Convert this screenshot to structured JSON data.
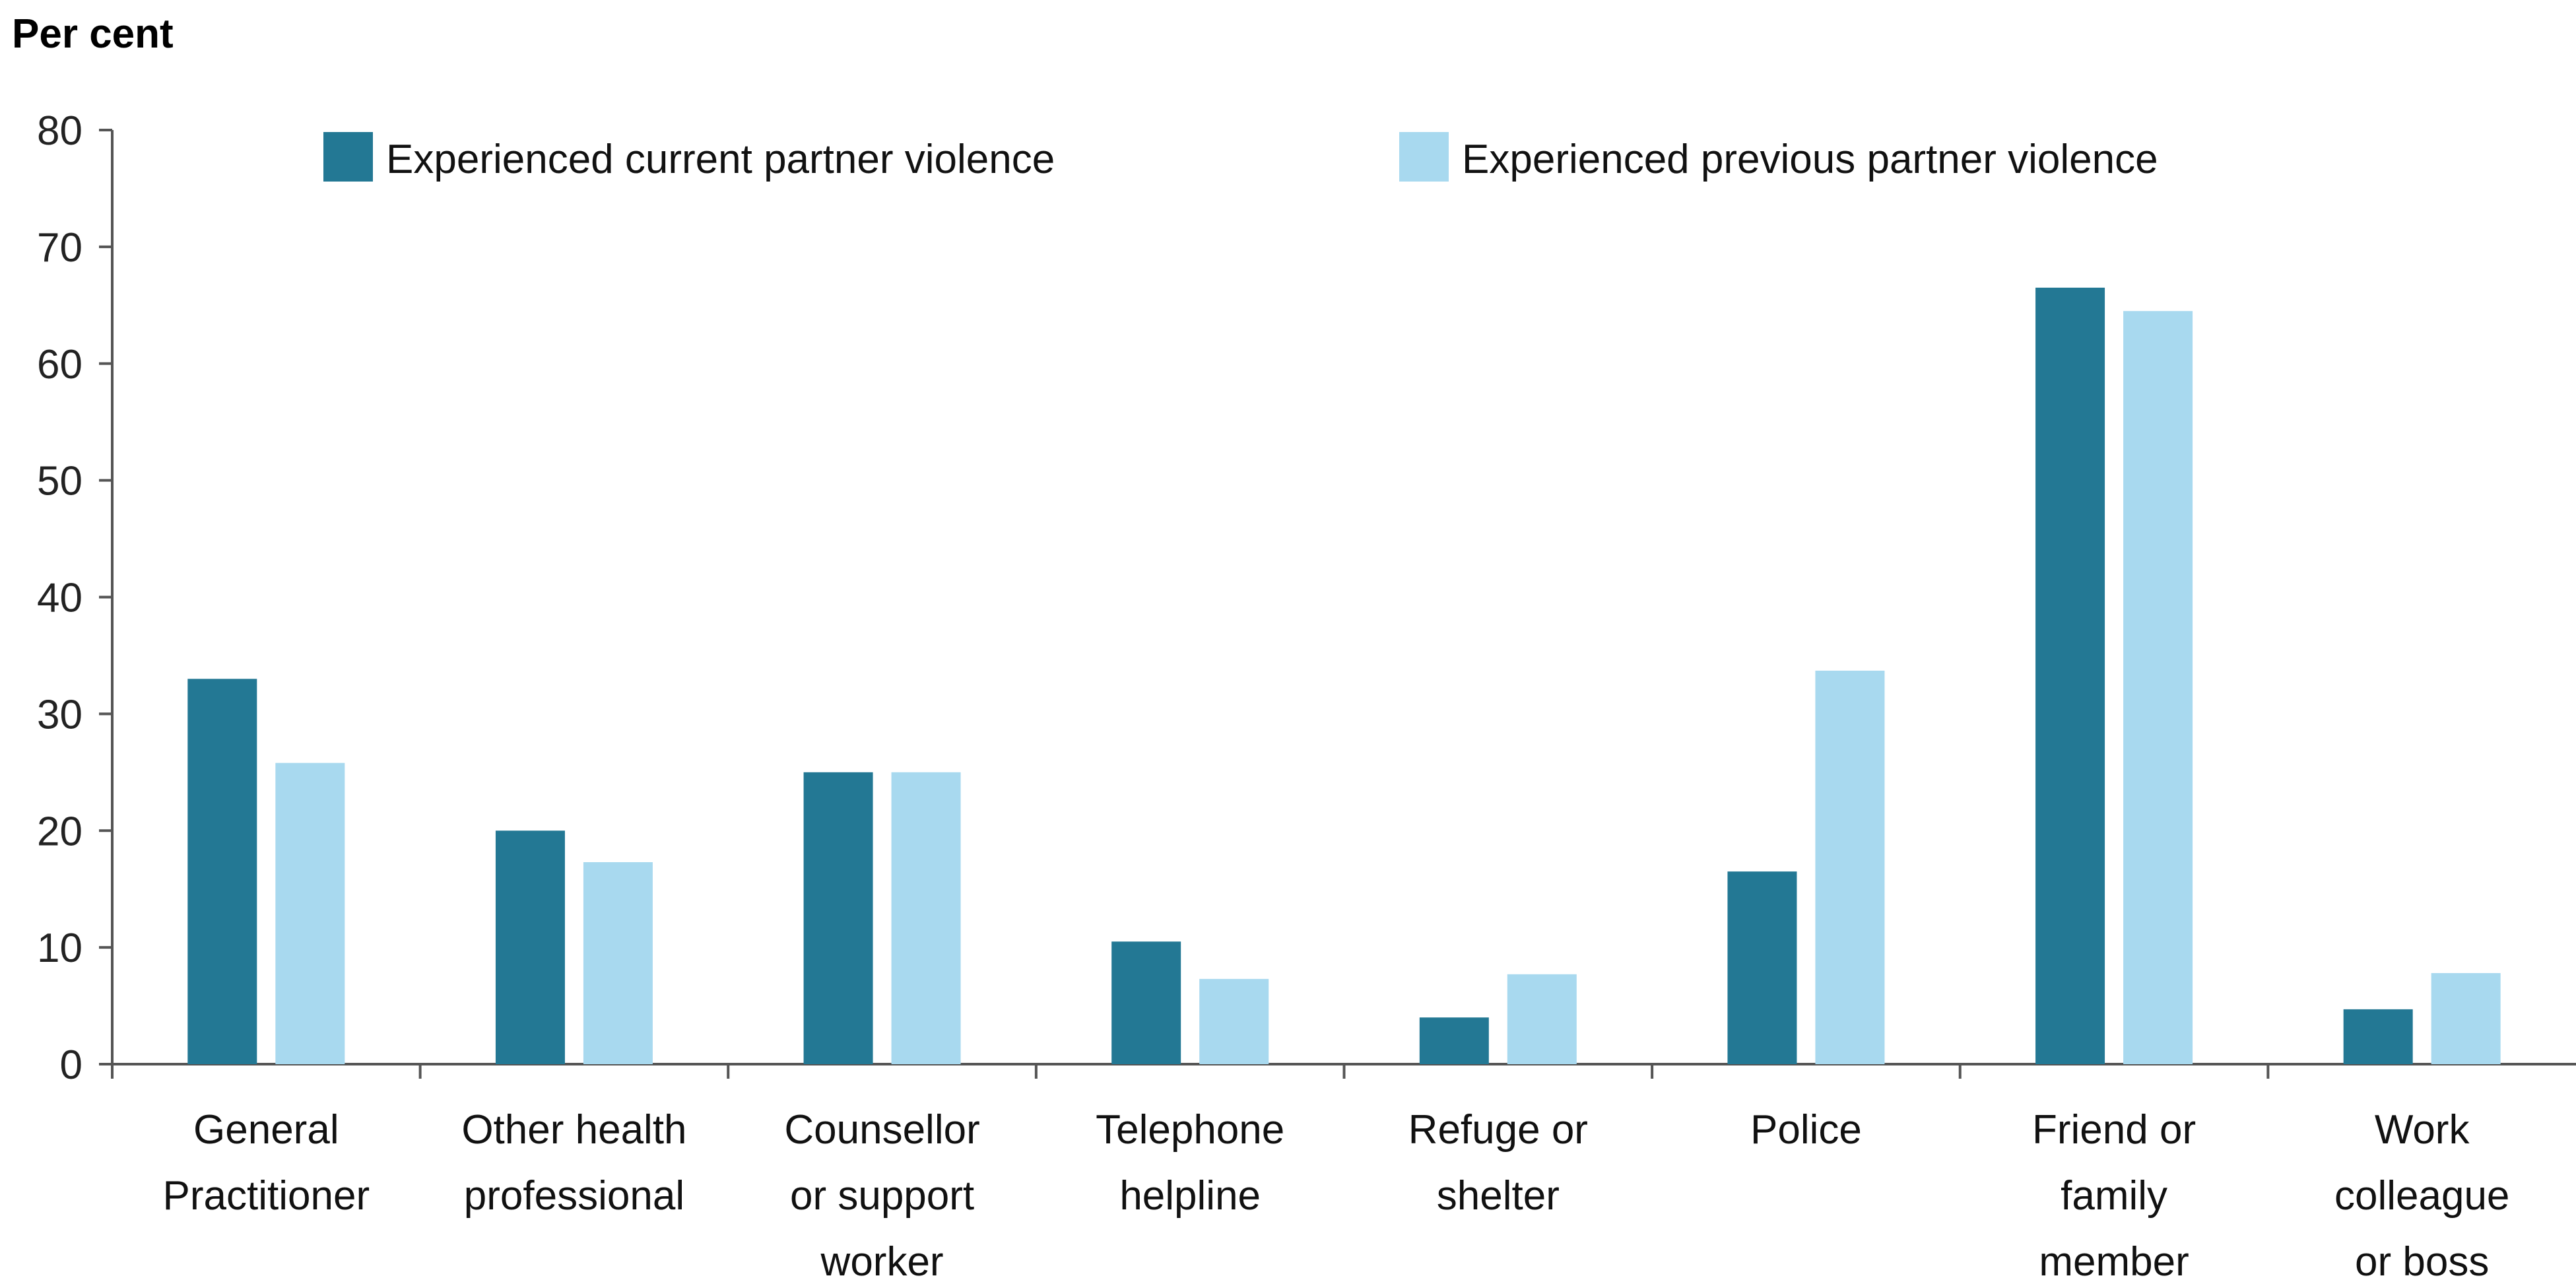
{
  "chart_data": {
    "type": "bar",
    "ylabel": "Per cent",
    "ylim": [
      0,
      80
    ],
    "yticks": [
      0,
      10,
      20,
      30,
      40,
      50,
      60,
      70,
      80
    ],
    "grid": false,
    "legend_position": "top",
    "categories": [
      [
        "General",
        "Practitioner"
      ],
      [
        "Other health",
        "professional"
      ],
      [
        "Counsellor",
        "or support",
        "worker"
      ],
      [
        "Telephone",
        "helpline"
      ],
      [
        "Refuge or",
        "shelter"
      ],
      [
        "Police"
      ],
      [
        "Friend or",
        "family",
        "member"
      ],
      [
        "Work",
        "colleague",
        "or boss"
      ]
    ],
    "series": [
      {
        "name": "Experienced current partner violence",
        "color": "#237894",
        "values": [
          33,
          20,
          25,
          10.5,
          4,
          16.5,
          66.5,
          4.7
        ]
      },
      {
        "name": "Experienced previous partner violence",
        "color": "#a8d9ef",
        "values": [
          25.8,
          17.3,
          25,
          7.3,
          7.7,
          33.7,
          64.5,
          7.8
        ]
      }
    ]
  }
}
